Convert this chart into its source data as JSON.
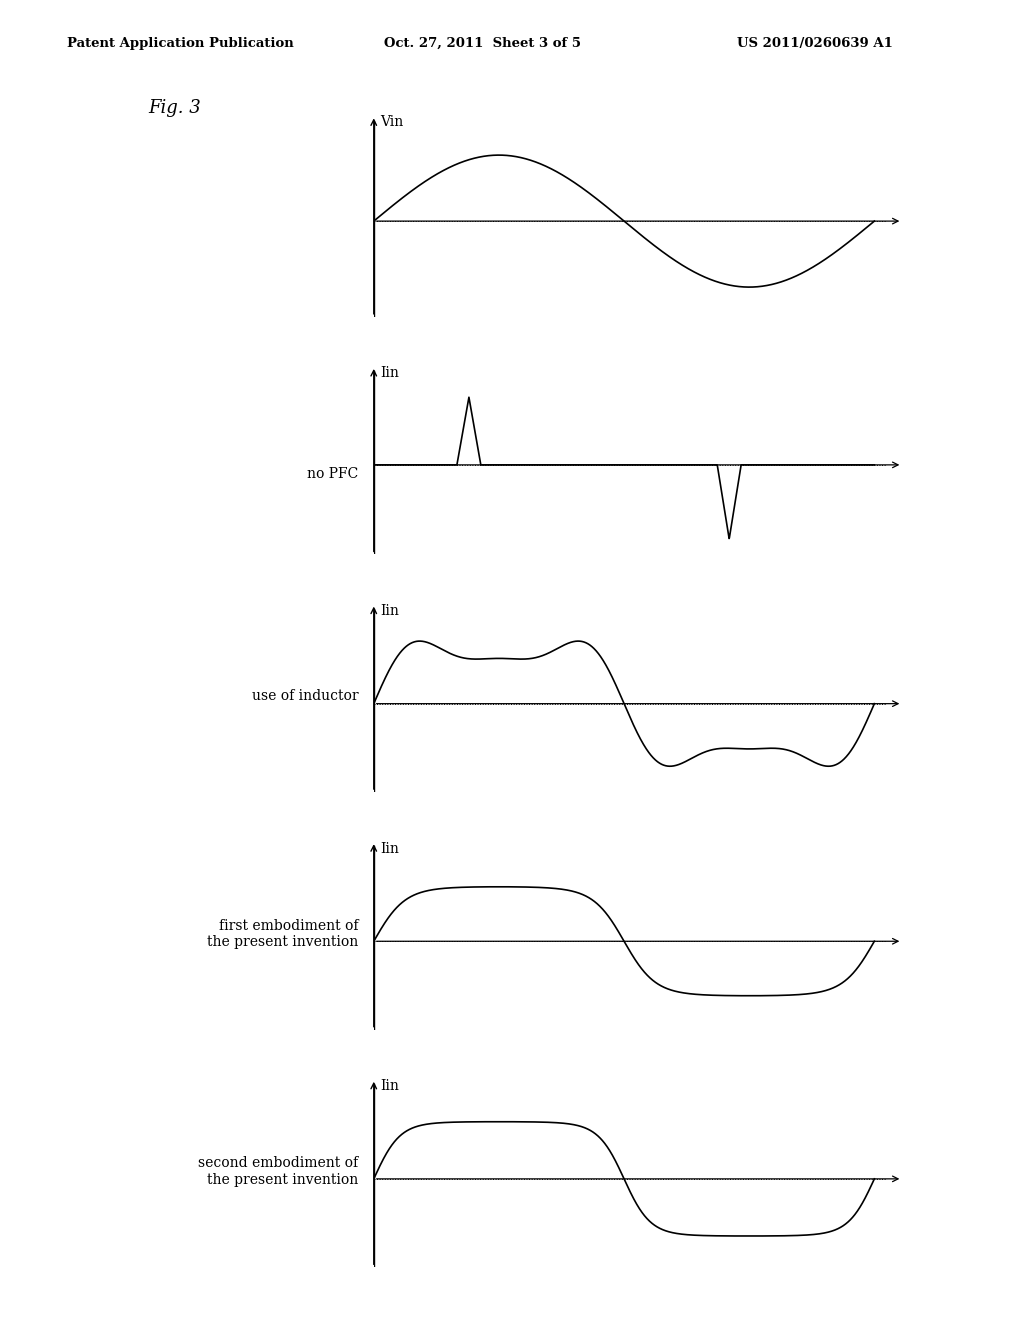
{
  "header_left": "Patent Application Publication",
  "header_center": "Oct. 27, 2011  Sheet 3 of 5",
  "header_right": "US 2011/0260639 A1",
  "fig_label": "Fig. 3",
  "background_color": "#ffffff",
  "plots": [
    {
      "ylabel": "Vin",
      "side_label": "",
      "side_label2": ""
    },
    {
      "ylabel": "Iin",
      "side_label": "no PFC",
      "side_label2": ""
    },
    {
      "ylabel": "Iin",
      "side_label": "use of inductor",
      "side_label2": ""
    },
    {
      "ylabel": "Iin",
      "side_label": "first embodiment of",
      "side_label2": "the present invention"
    },
    {
      "ylabel": "Iin",
      "side_label": "second embodiment of",
      "side_label2": "the present invention"
    }
  ]
}
